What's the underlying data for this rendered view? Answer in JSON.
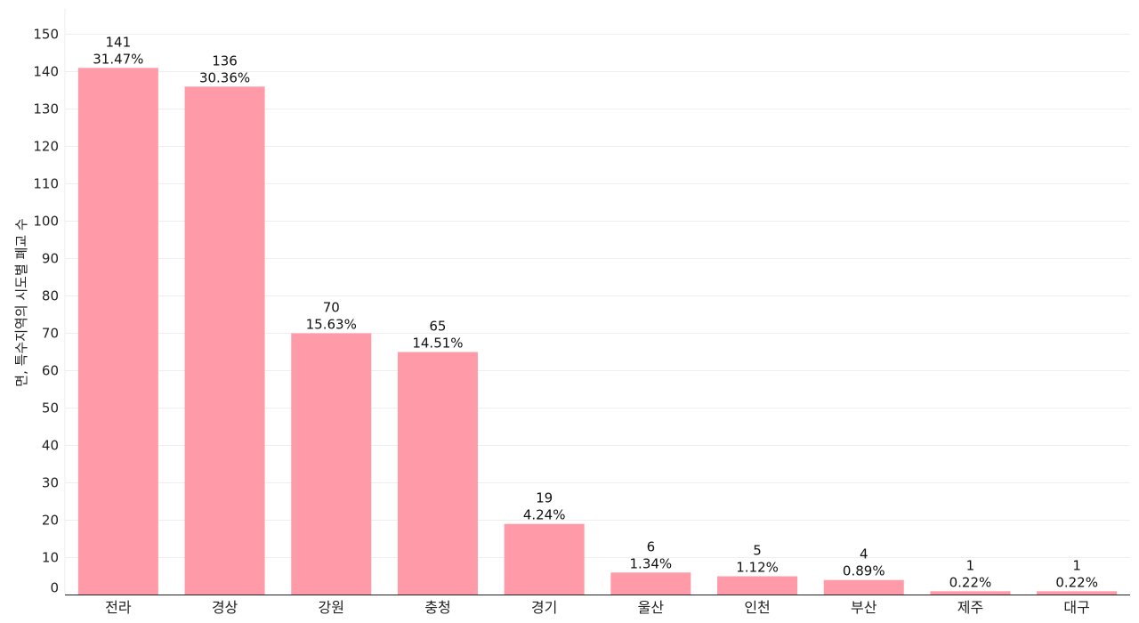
{
  "chart_data": {
    "type": "bar",
    "ylabel": "면, 특수지역의 시도별 폐교 수",
    "xlabel": "",
    "categories": [
      "전라",
      "경상",
      "강원",
      "충청",
      "경기",
      "울산",
      "인천",
      "부산",
      "제주",
      "대구"
    ],
    "values": [
      141,
      136,
      70,
      65,
      19,
      6,
      5,
      4,
      1,
      1
    ],
    "percent_labels": [
      "31.47%",
      "30.36%",
      "15.63%",
      "14.51%",
      "4.24%",
      "1.34%",
      "1.12%",
      "0.89%",
      "0.22%",
      "0.22%"
    ],
    "ylim": [
      0,
      150
    ],
    "yticks": [
      0,
      10,
      20,
      30,
      40,
      50,
      60,
      70,
      80,
      90,
      100,
      110,
      120,
      130,
      140,
      150
    ],
    "grid": true,
    "colors": {
      "bar": "#ff9aa8",
      "grid": "#eeeeee",
      "axis": "#222222"
    }
  }
}
